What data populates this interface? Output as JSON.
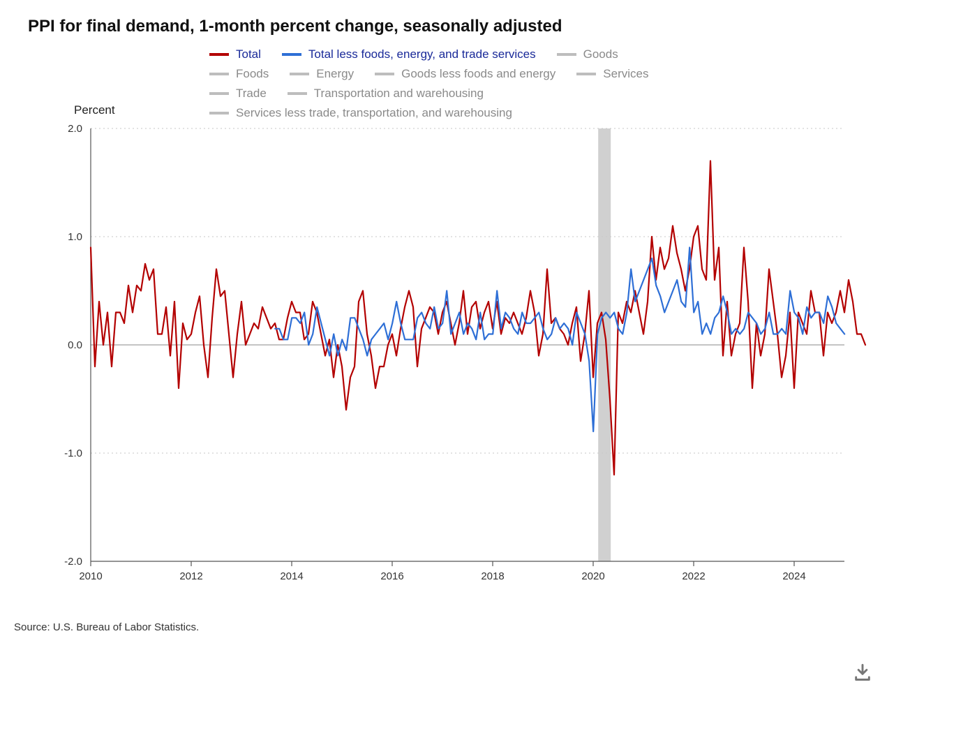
{
  "title": "PPI for final demand, 1-month percent change, seasonally adjusted",
  "ylabel": "Percent",
  "source": "Source: U.S. Bureau of Labor Statistics.",
  "chart": {
    "type": "line",
    "background_color": "#ffffff",
    "grid_color": "#c7c7c7",
    "axis_color": "#555555",
    "zero_line_color": "#b0b0b0",
    "tick_font_size": 15,
    "tick_color": "#333333",
    "title_font_size": 24,
    "line_width": 2.2,
    "x": {
      "min": 2010,
      "max": 2025,
      "ticks": [
        2010,
        2012,
        2014,
        2016,
        2018,
        2020,
        2022,
        2024
      ]
    },
    "y": {
      "min": -2.0,
      "max": 2.0,
      "ticks": [
        -2.0,
        -1.0,
        0.0,
        1.0,
        2.0
      ]
    },
    "recession_band": {
      "start": 2020.1,
      "end": 2020.35,
      "color": "#d0d0d0"
    },
    "x_values_start": 2010.0,
    "x_values_step_years": 0.083333,
    "series": [
      {
        "key": "total",
        "label": "Total",
        "color": "#b30000",
        "active": true,
        "values": [
          0.9,
          -0.2,
          0.4,
          0.0,
          0.3,
          -0.2,
          0.3,
          0.3,
          0.2,
          0.55,
          0.3,
          0.55,
          0.5,
          0.75,
          0.6,
          0.7,
          0.1,
          0.1,
          0.35,
          -0.1,
          0.4,
          -0.4,
          0.2,
          0.05,
          0.1,
          0.3,
          0.45,
          0.0,
          -0.3,
          0.25,
          0.7,
          0.45,
          0.5,
          0.1,
          -0.3,
          0.1,
          0.4,
          0.0,
          0.1,
          0.2,
          0.15,
          0.35,
          0.25,
          0.15,
          0.2,
          0.05,
          0.05,
          0.25,
          0.4,
          0.3,
          0.3,
          0.05,
          0.1,
          0.4,
          0.3,
          0.1,
          -0.1,
          0.05,
          -0.3,
          0.0,
          -0.2,
          -0.6,
          -0.3,
          -0.2,
          0.4,
          0.5,
          0.1,
          -0.1,
          -0.4,
          -0.2,
          -0.2,
          0.0,
          0.1,
          -0.1,
          0.15,
          0.35,
          0.5,
          0.35,
          -0.2,
          0.15,
          0.25,
          0.35,
          0.3,
          0.1,
          0.3,
          0.4,
          0.2,
          0.0,
          0.2,
          0.5,
          0.1,
          0.35,
          0.4,
          0.15,
          0.3,
          0.4,
          0.15,
          0.4,
          0.1,
          0.25,
          0.2,
          0.3,
          0.2,
          0.1,
          0.25,
          0.5,
          0.3,
          -0.1,
          0.1,
          0.7,
          0.2,
          0.25,
          0.15,
          0.1,
          0.0,
          0.2,
          0.35,
          -0.15,
          0.1,
          0.5,
          -0.3,
          0.2,
          0.3,
          0.05,
          -0.5,
          -1.2,
          0.3,
          0.2,
          0.4,
          0.3,
          0.5,
          0.3,
          0.1,
          0.4,
          1.0,
          0.6,
          0.9,
          0.7,
          0.8,
          1.1,
          0.85,
          0.7,
          0.5,
          0.7,
          1.0,
          1.1,
          0.7,
          0.6,
          1.7,
          0.6,
          0.9,
          -0.1,
          0.4,
          -0.1,
          0.1,
          0.2,
          0.9,
          0.4,
          -0.4,
          0.2,
          -0.1,
          0.1,
          0.7,
          0.4,
          0.1,
          -0.3,
          -0.1,
          0.3,
          -0.4,
          0.3,
          0.2,
          0.1,
          0.5,
          0.3,
          0.3,
          -0.1,
          0.3,
          0.2,
          0.3,
          0.5,
          0.3,
          0.6,
          0.4,
          0.1,
          0.1,
          0.0
        ]
      },
      {
        "key": "core",
        "label": "Total less foods, energy, and trade services",
        "color": "#2e6fd6",
        "active": true,
        "start_x": 2013.67,
        "values": [
          0.15,
          0.15,
          0.05,
          0.05,
          0.25,
          0.25,
          0.2,
          0.3,
          0.0,
          0.1,
          0.35,
          0.2,
          0.05,
          -0.1,
          0.1,
          -0.1,
          0.05,
          -0.05,
          0.25,
          0.25,
          0.15,
          0.05,
          -0.1,
          0.05,
          0.1,
          0.15,
          0.2,
          0.05,
          0.2,
          0.4,
          0.2,
          0.05,
          0.05,
          0.05,
          0.25,
          0.3,
          0.2,
          0.15,
          0.35,
          0.15,
          0.2,
          0.5,
          0.1,
          0.2,
          0.3,
          0.1,
          0.2,
          0.15,
          0.05,
          0.3,
          0.05,
          0.1,
          0.1,
          0.5,
          0.15,
          0.3,
          0.25,
          0.15,
          0.1,
          0.3,
          0.2,
          0.2,
          0.25,
          0.3,
          0.15,
          0.05,
          0.1,
          0.25,
          0.15,
          0.2,
          0.15,
          0.0,
          0.3,
          0.2,
          0.1,
          -0.15,
          -0.8,
          0.1,
          0.25,
          0.3,
          0.25,
          0.3,
          0.15,
          0.1,
          0.3,
          0.7,
          0.4,
          0.5,
          0.6,
          0.7,
          0.8,
          0.55,
          0.45,
          0.3,
          0.4,
          0.5,
          0.6,
          0.4,
          0.35,
          0.9,
          0.3,
          0.4,
          0.1,
          0.2,
          0.1,
          0.25,
          0.3,
          0.45,
          0.3,
          0.1,
          0.15,
          0.1,
          0.15,
          0.3,
          0.25,
          0.2,
          0.1,
          0.15,
          0.3,
          0.1,
          0.1,
          0.15,
          0.1,
          0.5,
          0.3,
          0.25,
          0.1,
          0.35,
          0.25,
          0.3,
          0.3,
          0.2,
          0.45,
          0.35,
          0.2,
          0.15,
          0.1
        ]
      },
      {
        "key": "goods",
        "label": "Goods",
        "color": "#bdbdbd",
        "active": false
      },
      {
        "key": "foods",
        "label": "Foods",
        "color": "#bdbdbd",
        "active": false
      },
      {
        "key": "energy",
        "label": "Energy",
        "color": "#bdbdbd",
        "active": false
      },
      {
        "key": "goods_less",
        "label": "Goods less foods and energy",
        "color": "#bdbdbd",
        "active": false
      },
      {
        "key": "services",
        "label": "Services",
        "color": "#bdbdbd",
        "active": false
      },
      {
        "key": "trade",
        "label": "Trade",
        "color": "#bdbdbd",
        "active": false
      },
      {
        "key": "transport",
        "label": "Transportation and warehousing",
        "color": "#bdbdbd",
        "active": false
      },
      {
        "key": "services_less",
        "label": "Services less trade, transportation, and warehousing",
        "color": "#bdbdbd",
        "active": false
      }
    ],
    "legend_layout": [
      [
        "total",
        "core",
        "goods"
      ],
      [
        "foods",
        "energy",
        "goods_less",
        "services"
      ],
      [
        "trade",
        "transport"
      ],
      [
        "services_less"
      ]
    ],
    "legend_active_text": "#1a2a99",
    "legend_inactive_text": "#8a8a8a"
  }
}
